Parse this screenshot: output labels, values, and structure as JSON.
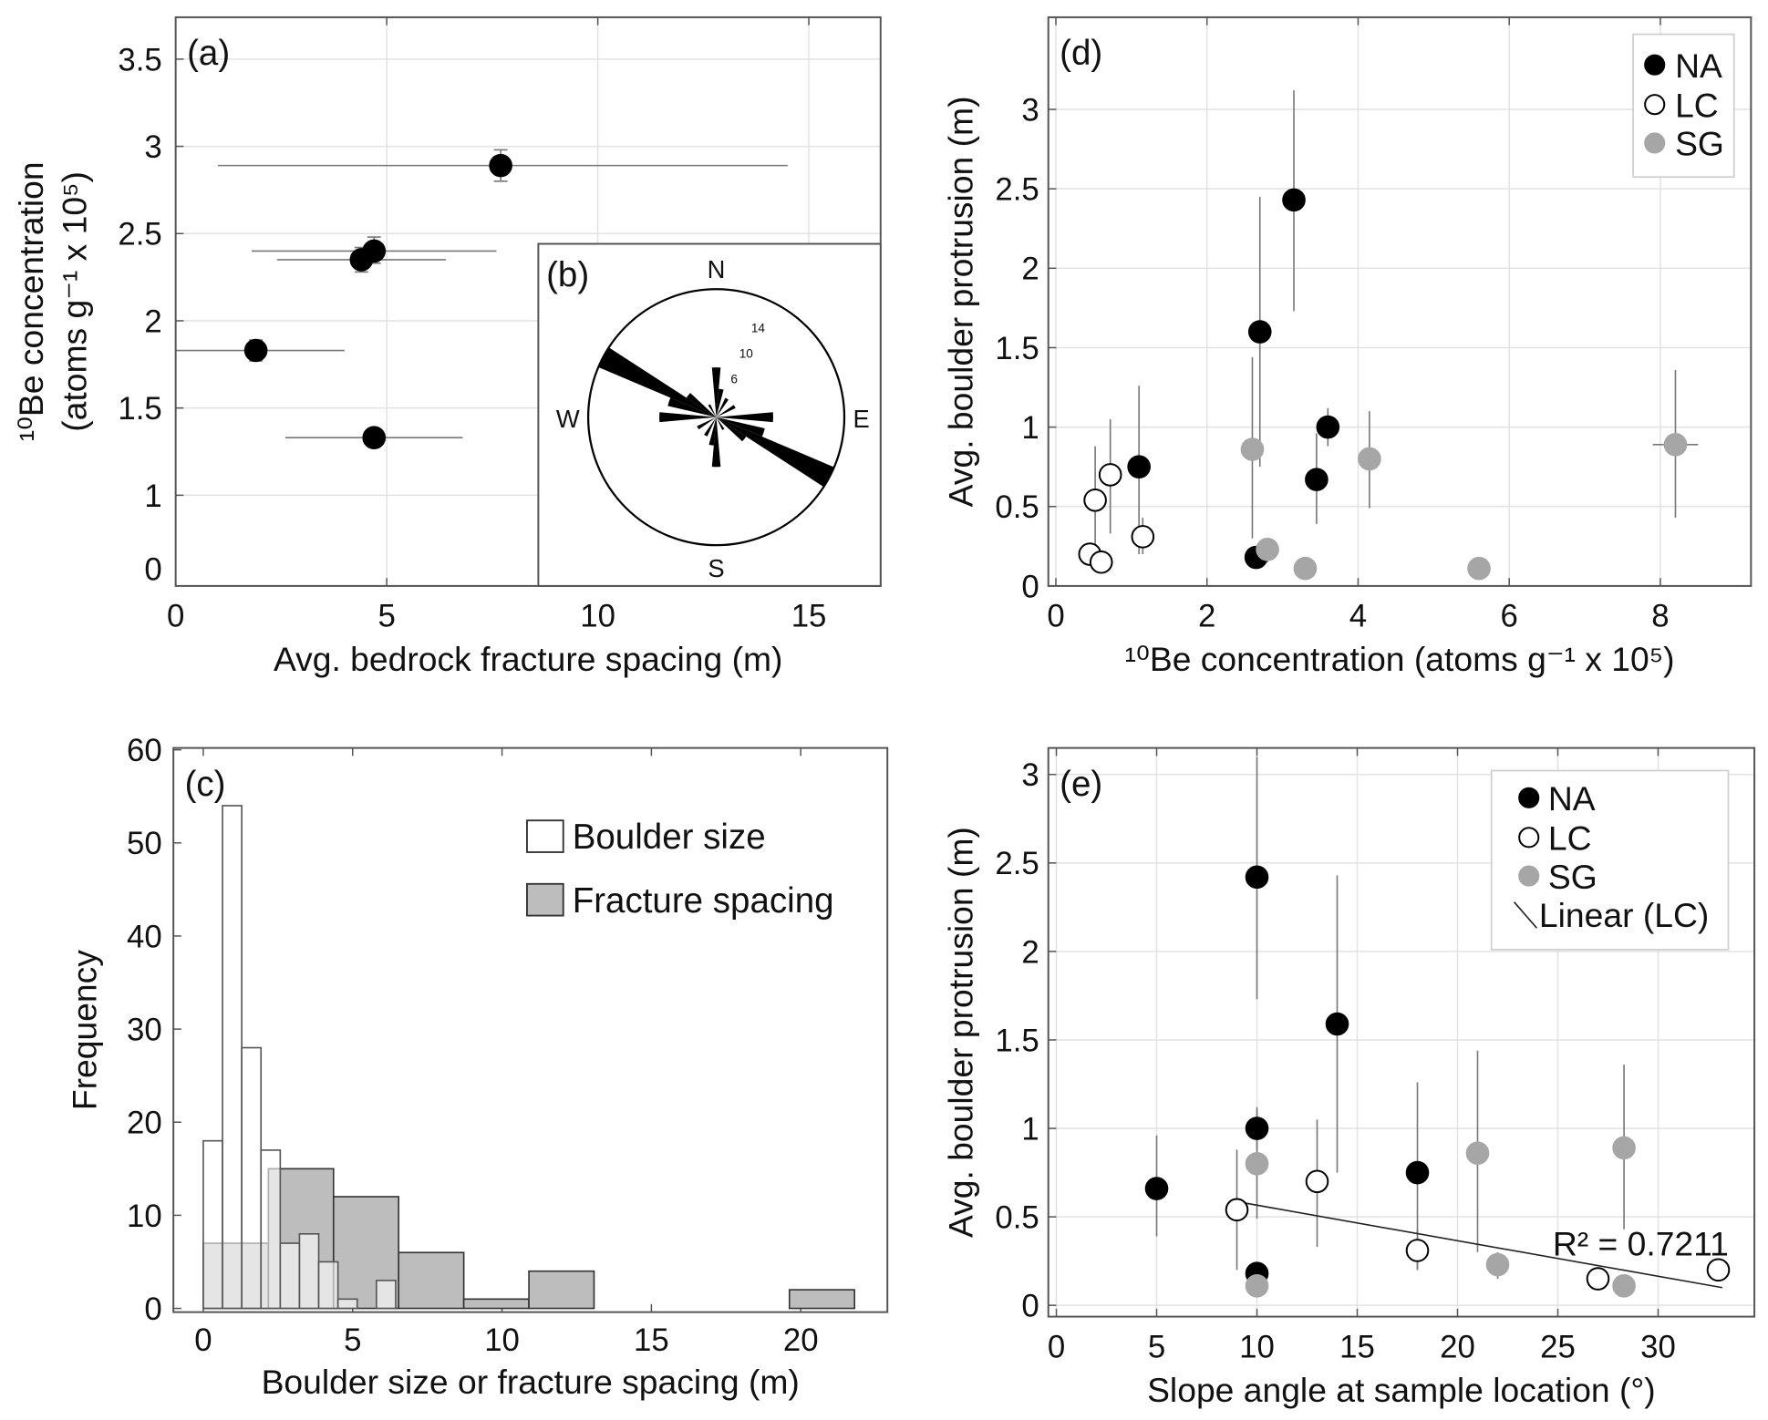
{
  "chart_data": [
    {
      "id": "a",
      "type": "scatter",
      "panel_label": "(a)",
      "xlabel": "Avg. bedrock fracture spacing (m)",
      "ylabel": [
        "¹⁰Be concentration",
        "(atoms g⁻¹ x 10⁵)"
      ],
      "xlim": [
        0,
        16.7
      ],
      "ylim": [
        0.48,
        3.74
      ],
      "xticks": [
        0,
        5,
        10,
        15
      ],
      "yticks": [
        1,
        1.5,
        2,
        2.5,
        3,
        3.5
      ],
      "y_axis_bottom_label": "0",
      "grid": true,
      "series": [
        {
          "marker": "filled-black",
          "points": [
            {
              "x": 7.7,
              "y": 2.89,
              "xerr": [
                1.0,
                14.5
              ],
              "yerr": [
                2.8,
                2.98
              ]
            },
            {
              "x": 4.7,
              "y": 2.4,
              "xerr": [
                1.8,
                7.6
              ],
              "yerr": [
                2.33,
                2.48
              ]
            },
            {
              "x": 4.4,
              "y": 2.35,
              "xerr": [
                2.4,
                6.4
              ],
              "yerr": [
                2.28,
                2.42
              ]
            },
            {
              "x": 1.9,
              "y": 1.83,
              "xerr": [
                0.0,
                4.0
              ],
              "yerr": [
                1.77,
                1.89
              ]
            },
            {
              "x": 4.7,
              "y": 1.33,
              "xerr": [
                2.6,
                6.8
              ],
              "yerr": null
            }
          ]
        }
      ]
    },
    {
      "id": "b",
      "type": "rose",
      "panel_label": "(b)",
      "directions": {
        "N": "N",
        "E": "E",
        "S": "S",
        "W": "W"
      },
      "ring_labels": [
        6,
        10,
        14
      ],
      "max_count": 18,
      "petals": [
        {
          "azimuth": 118,
          "count": 18
        },
        {
          "azimuth": 298,
          "count": 18
        },
        {
          "azimuth": 108,
          "count": 7
        },
        {
          "azimuth": 288,
          "count": 7
        },
        {
          "azimuth": 128,
          "count": 5
        },
        {
          "azimuth": 308,
          "count": 5
        },
        {
          "azimuth": 90,
          "count": 8
        },
        {
          "azimuth": 270,
          "count": 8
        },
        {
          "azimuth": 0,
          "count": 7
        },
        {
          "azimuth": 180,
          "count": 7
        },
        {
          "azimuth": 10,
          "count": 4
        },
        {
          "azimuth": 190,
          "count": 4
        },
        {
          "azimuth": 30,
          "count": 3
        },
        {
          "azimuth": 210,
          "count": 3
        },
        {
          "azimuth": 60,
          "count": 3
        },
        {
          "azimuth": 240,
          "count": 3
        },
        {
          "azimuth": 150,
          "count": 2
        },
        {
          "azimuth": 330,
          "count": 2
        }
      ]
    },
    {
      "id": "c",
      "type": "bar",
      "panel_label": "(c)",
      "xlabel": "Boulder size or fracture spacing (m)",
      "ylabel": "Frequency",
      "xlim": [
        -1,
        22.9
      ],
      "ylim": [
        -0.4,
        60.2
      ],
      "xticks": [
        0,
        5,
        10,
        15,
        20
      ],
      "yticks": [
        0,
        10,
        20,
        30,
        40,
        50,
        60
      ],
      "grid": false,
      "legend": "top-right",
      "series": [
        {
          "name": "Fracture spacing",
          "color": "#bdbdbd",
          "bin_start": 0,
          "bin_width": 2.18,
          "values": [
            7,
            15,
            12,
            6,
            1,
            4,
            0,
            0,
            0,
            2
          ]
        },
        {
          "name": "Boulder size",
          "color": "#ffffff",
          "bin_start": 0,
          "bin_width": 0.644,
          "values": [
            18,
            54,
            28,
            17,
            7,
            8,
            5,
            1,
            0,
            3
          ]
        }
      ]
    },
    {
      "id": "d",
      "type": "scatter",
      "panel_label": "(d)",
      "xlabel": "¹⁰Be concentration  (atoms g⁻¹ x 10⁵)",
      "ylabel": "Avg. boulder protrusion (m)",
      "xlim": [
        -0.1,
        9.2
      ],
      "ylim": [
        0,
        3.58
      ],
      "xticks": [
        0,
        2,
        4,
        6,
        8
      ],
      "yticks": [
        0,
        0.5,
        1,
        1.5,
        2,
        2.5,
        3
      ],
      "grid": true,
      "legend": "top-right",
      "series": [
        {
          "name": "NA",
          "marker": "filled-black",
          "points": [
            {
              "x": 3.15,
              "y": 2.43,
              "yerr": [
                1.73,
                3.12
              ]
            },
            {
              "x": 2.7,
              "y": 1.6,
              "yerr": [
                0.75,
                2.45
              ]
            },
            {
              "x": 3.6,
              "y": 1.0,
              "yerr": [
                0.88,
                1.12
              ]
            },
            {
              "x": 1.1,
              "y": 0.75,
              "yerr": [
                0.2,
                1.26
              ]
            },
            {
              "x": 3.45,
              "y": 0.67,
              "yerr": [
                0.39,
                0.96
              ]
            },
            {
              "x": 2.65,
              "y": 0.18,
              "yerr": [
                0.13,
                0.24
              ]
            }
          ]
        },
        {
          "name": "LC",
          "marker": "open",
          "points": [
            {
              "x": 0.72,
              "y": 0.7,
              "yerr": [
                0.33,
                1.05
              ]
            },
            {
              "x": 0.52,
              "y": 0.54,
              "yerr": [
                0.2,
                0.88
              ]
            },
            {
              "x": 1.15,
              "y": 0.31,
              "yerr": [
                0.2,
                0.43
              ]
            },
            {
              "x": 0.45,
              "y": 0.2,
              "yerr": null
            },
            {
              "x": 0.6,
              "y": 0.15,
              "yerr": null
            }
          ]
        },
        {
          "name": "SG",
          "marker": "filled-gray",
          "points": [
            {
              "x": 2.6,
              "y": 0.86,
              "yerr": [
                0.3,
                1.44
              ]
            },
            {
              "x": 4.15,
              "y": 0.8,
              "yerr": [
                0.49,
                1.1
              ]
            },
            {
              "x": 2.8,
              "y": 0.23,
              "yerr": [
                0.15,
                0.3
              ]
            },
            {
              "x": 3.3,
              "y": 0.11,
              "yerr": null
            },
            {
              "x": 5.6,
              "y": 0.11,
              "xerr": [
                5.45,
                5.75
              ],
              "yerr": null
            },
            {
              "x": 8.2,
              "y": 0.89,
              "xerr": [
                7.9,
                8.5
              ],
              "yerr": [
                0.43,
                1.36
              ]
            }
          ]
        }
      ]
    },
    {
      "id": "e",
      "type": "scatter",
      "panel_label": "(e)",
      "xlabel": "Slope angle at sample location (°)",
      "ylabel": "Avg. boulder protrusion (m)",
      "xlim": [
        -0.4,
        34.8
      ],
      "ylim": [
        -0.064,
        3.15
      ],
      "xticks": [
        0,
        5,
        10,
        15,
        20,
        25,
        30
      ],
      "yticks": [
        0,
        0.5,
        1,
        1.5,
        2,
        2.5,
        3
      ],
      "grid": true,
      "legend": "top-right",
      "annotation": "R² = 0.7211",
      "trendline": {
        "name": "Linear (LC)",
        "x": [
          9.3,
          33.2
        ],
        "y": [
          0.58,
          0.1
        ]
      },
      "series": [
        {
          "name": "NA",
          "marker": "filled-black",
          "points": [
            {
              "x": 10,
              "y": 2.42,
              "yerr": [
                1.73,
                3.1
              ]
            },
            {
              "x": 14,
              "y": 1.59,
              "yerr": [
                0.75,
                2.43
              ]
            },
            {
              "x": 10,
              "y": 1.0,
              "yerr": [
                0.88,
                1.12
              ]
            },
            {
              "x": 18,
              "y": 0.75,
              "yerr": [
                0.2,
                1.26
              ]
            },
            {
              "x": 5,
              "y": 0.66,
              "yerr": [
                0.39,
                0.96
              ]
            },
            {
              "x": 10,
              "y": 0.18,
              "yerr": [
                0.13,
                0.24
              ]
            }
          ]
        },
        {
          "name": "LC",
          "marker": "open",
          "points": [
            {
              "x": 13,
              "y": 0.7,
              "yerr": [
                0.33,
                1.05
              ]
            },
            {
              "x": 9,
              "y": 0.54,
              "yerr": [
                0.2,
                0.88
              ]
            },
            {
              "x": 18,
              "y": 0.31,
              "yerr": [
                0.2,
                0.43
              ]
            },
            {
              "x": 33,
              "y": 0.2,
              "yerr": null
            },
            {
              "x": 27,
              "y": 0.15,
              "yerr": null
            }
          ]
        },
        {
          "name": "SG",
          "marker": "filled-gray",
          "points": [
            {
              "x": 21,
              "y": 0.86,
              "yerr": [
                0.3,
                1.44
              ]
            },
            {
              "x": 10,
              "y": 0.8,
              "yerr": [
                0.49,
                1.1
              ]
            },
            {
              "x": 22,
              "y": 0.23,
              "yerr": [
                0.15,
                0.3
              ]
            },
            {
              "x": 10,
              "y": 0.11,
              "yerr": null
            },
            {
              "x": 28.3,
              "y": 0.11,
              "yerr": null
            },
            {
              "x": 28.3,
              "y": 0.89,
              "yerr": [
                0.43,
                1.36
              ]
            }
          ]
        }
      ]
    }
  ],
  "colors": {
    "na": "#000000",
    "lc": "#ffffff",
    "sg": "#a6a6a6",
    "errorbar": "#777777",
    "grid": "#e2e2e2",
    "axis": "#555555"
  }
}
